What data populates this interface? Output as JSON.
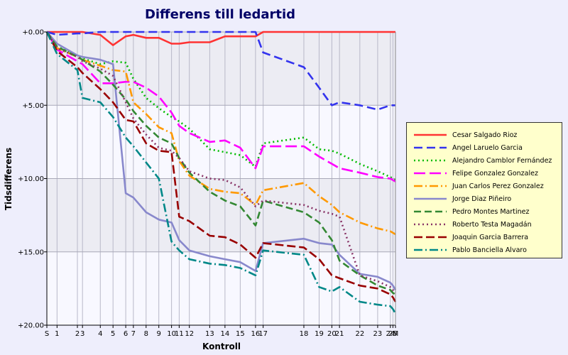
{
  "chart_data": {
    "type": "line",
    "title": "Differens till ledartid",
    "xlabel": "Kontroll",
    "ylabel": "Tidsdifferens",
    "x_ticks": [
      "S",
      "1",
      "2",
      "3",
      "4",
      "5",
      "6",
      "7",
      "8",
      "9",
      "10",
      "11",
      "12",
      "13",
      "14",
      "15",
      "16",
      "17",
      "18",
      "19",
      "20",
      "21",
      "22",
      "23",
      "24",
      "25",
      "M"
    ],
    "x_positions": [
      0,
      0.4,
      1.2,
      1.4,
      2.1,
      2.6,
      3.1,
      3.4,
      3.9,
      4.4,
      4.9,
      5.2,
      5.6,
      6.4,
      7,
      7.6,
      8.2,
      8.5,
      10.1,
      10.7,
      11.2,
      11.5,
      12.3,
      13,
      13.5,
      13.6,
      13.7
    ],
    "y_ticks": [
      "+0.00",
      "+5.00",
      "+10.00",
      "+15.00",
      "+20.00"
    ],
    "ylim": [
      0,
      20
    ],
    "xlim": [
      0,
      13.7
    ],
    "grid": true,
    "shaded_bands": [
      [
        0,
        5
      ],
      [
        10,
        15
      ]
    ],
    "legend_position": "right",
    "series": [
      {
        "name": "Cesar Salgado Rioz",
        "color": "#ff3333",
        "dash": "",
        "values": [
          0,
          0,
          0,
          0,
          0.2,
          0.9,
          0.3,
          0.2,
          0.4,
          0.4,
          0.8,
          0.8,
          0.7,
          0.7,
          0.3,
          0.3,
          0.3,
          0,
          0,
          0,
          0,
          0,
          0,
          0,
          0,
          0,
          0
        ]
      },
      {
        "name": "Angel Laruelo Garcia",
        "color": "#3333ee",
        "dash": "12,6",
        "values": [
          0,
          0.2,
          0.1,
          0.1,
          0,
          0,
          0,
          0,
          0,
          0,
          0,
          0,
          0,
          0,
          0,
          0,
          0,
          1.4,
          2.4,
          3.8,
          5,
          4.8,
          5,
          5.3,
          5,
          5,
          5
        ]
      },
      {
        "name": "Alejandro Camblor Fernández",
        "color": "#00bb00",
        "dash": "2,4",
        "values": [
          0,
          1.0,
          1.6,
          1.8,
          2.2,
          2.0,
          2.1,
          3.2,
          4.5,
          5.2,
          5.8,
          6.1,
          6.6,
          8.0,
          8.2,
          8.4,
          9.2,
          7.6,
          7.2,
          8.0,
          8.1,
          8.3,
          9.0,
          9.5,
          9.9,
          10.0,
          10.1
        ]
      },
      {
        "name": "Felipe Gonzalez Gonzalez",
        "color": "#ff00ff",
        "dash": "16,6",
        "values": [
          0,
          1.2,
          2.0,
          2.2,
          3.5,
          3.5,
          3.4,
          3.4,
          3.8,
          4.4,
          5.5,
          6.4,
          6.9,
          7.5,
          7.4,
          7.9,
          9.3,
          7.8,
          7.8,
          8.5,
          9.0,
          9.3,
          9.6,
          9.9,
          10.0,
          10.1,
          10.2
        ]
      },
      {
        "name": "Juan Carlos Perez Gonzalez",
        "color": "#ff9900",
        "dash": "12,4,2,4",
        "values": [
          0,
          1.1,
          1.7,
          1.9,
          2.3,
          2.6,
          2.7,
          4.8,
          5.6,
          6.5,
          6.9,
          8.8,
          9.8,
          10.7,
          10.9,
          11.0,
          11.8,
          10.8,
          10.3,
          11.2,
          11.8,
          12.3,
          13.0,
          13.4,
          13.6,
          13.7,
          13.8
        ]
      },
      {
        "name": "Jorge Diaz Piñeiro",
        "color": "#8888cc",
        "dash": "",
        "values": [
          0,
          0.8,
          1.6,
          1.7,
          1.9,
          2.2,
          11.0,
          11.3,
          12.3,
          12.8,
          13.0,
          14.2,
          14.9,
          15.3,
          15.5,
          15.7,
          16.3,
          14.4,
          14.1,
          14.4,
          14.5,
          15.2,
          16.5,
          16.7,
          17.1,
          17.3,
          17.6
        ]
      },
      {
        "name": "Pedro Montes Martinez",
        "color": "#338833",
        "dash": "10,5",
        "values": [
          0,
          1.0,
          1.7,
          1.9,
          2.7,
          3.6,
          4.6,
          5.4,
          6.4,
          7.2,
          7.6,
          8.6,
          9.6,
          10.9,
          11.5,
          11.9,
          13.2,
          11.5,
          12.3,
          13.0,
          14.2,
          15.6,
          16.6,
          17.3,
          17.6,
          17.8,
          17.9
        ]
      },
      {
        "name": "Roberto Testa Magadán",
        "color": "#883366",
        "dash": "2,4",
        "values": [
          0,
          1.1,
          1.7,
          2.0,
          2.5,
          3.0,
          4.8,
          5.9,
          7.0,
          7.9,
          8.1,
          8.6,
          9.5,
          10.0,
          10.1,
          10.6,
          11.9,
          11.5,
          11.8,
          12.2,
          12.4,
          12.6,
          16.6,
          17.0,
          17.4,
          17.6,
          17.8
        ]
      },
      {
        "name": "Joaquin Garcia Barrera",
        "color": "#990000",
        "dash": "12,5",
        "values": [
          0,
          1.3,
          2.4,
          2.8,
          3.9,
          4.8,
          6.0,
          6.1,
          7.6,
          8.1,
          8.2,
          12.6,
          12.9,
          13.9,
          14.0,
          14.5,
          15.4,
          14.4,
          14.7,
          15.5,
          16.6,
          16.8,
          17.3,
          17.5,
          17.9,
          18.1,
          18.4
        ]
      },
      {
        "name": "Pablo Banciella Alvaro",
        "color": "#008888",
        "dash": "12,4,2,4",
        "values": [
          0,
          1.5,
          2.6,
          4.5,
          4.8,
          5.8,
          7.2,
          7.8,
          8.9,
          10.0,
          14.3,
          14.9,
          15.5,
          15.8,
          15.9,
          16.1,
          16.6,
          14.9,
          15.2,
          17.4,
          17.7,
          17.4,
          18.4,
          18.6,
          18.7,
          18.9,
          19.2
        ]
      }
    ]
  }
}
